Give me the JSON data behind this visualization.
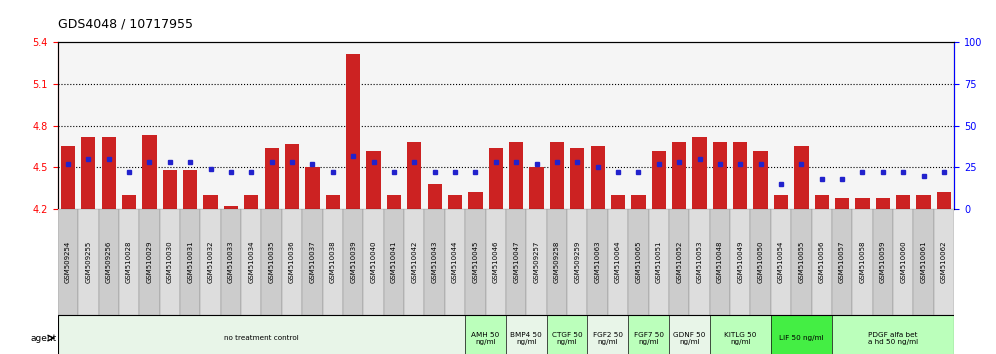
{
  "title": "GDS4048 / 10717955",
  "samples": [
    "GSM509254",
    "GSM509255",
    "GSM509256",
    "GSM510028",
    "GSM510029",
    "GSM510030",
    "GSM510031",
    "GSM510032",
    "GSM510033",
    "GSM510034",
    "GSM510035",
    "GSM510036",
    "GSM510037",
    "GSM510038",
    "GSM510039",
    "GSM510040",
    "GSM510041",
    "GSM510042",
    "GSM510043",
    "GSM510044",
    "GSM510045",
    "GSM510046",
    "GSM510047",
    "GSM509257",
    "GSM509258",
    "GSM509259",
    "GSM510063",
    "GSM510064",
    "GSM510065",
    "GSM510051",
    "GSM510052",
    "GSM510053",
    "GSM510048",
    "GSM510049",
    "GSM510050",
    "GSM510054",
    "GSM510055",
    "GSM510056",
    "GSM510057",
    "GSM510058",
    "GSM510059",
    "GSM510060",
    "GSM510061",
    "GSM510062"
  ],
  "bar_values": [
    4.65,
    4.72,
    4.72,
    4.3,
    4.73,
    4.48,
    4.48,
    4.3,
    4.22,
    4.3,
    4.64,
    4.67,
    4.5,
    4.3,
    5.32,
    4.62,
    4.3,
    4.68,
    4.38,
    4.3,
    4.32,
    4.64,
    4.68,
    4.5,
    4.68,
    4.64,
    4.65,
    4.3,
    4.3,
    4.62,
    4.68,
    4.72,
    4.68,
    4.68,
    4.62,
    4.3,
    4.65,
    4.3,
    4.28,
    4.28,
    4.28,
    4.3,
    4.3,
    4.32
  ],
  "percentile_values": [
    27,
    30,
    30,
    22,
    28,
    28,
    28,
    24,
    22,
    22,
    28,
    28,
    27,
    22,
    32,
    28,
    22,
    28,
    22,
    22,
    22,
    28,
    28,
    27,
    28,
    28,
    25,
    22,
    22,
    27,
    28,
    30,
    27,
    27,
    27,
    15,
    27,
    18,
    18,
    22,
    22,
    22,
    20,
    22
  ],
  "agent_groups": [
    {
      "label": "no treatment control",
      "start": 0,
      "end": 20,
      "color": "#e8f5e8",
      "bright": false
    },
    {
      "label": "AMH 50\nng/ml",
      "start": 20,
      "end": 22,
      "color": "#bbffbb",
      "bright": true
    },
    {
      "label": "BMP4 50\nng/ml",
      "start": 22,
      "end": 24,
      "color": "#e8f5e8",
      "bright": false
    },
    {
      "label": "CTGF 50\nng/ml",
      "start": 24,
      "end": 26,
      "color": "#bbffbb",
      "bright": true
    },
    {
      "label": "FGF2 50\nng/ml",
      "start": 26,
      "end": 28,
      "color": "#e8f5e8",
      "bright": false
    },
    {
      "label": "FGF7 50\nng/ml",
      "start": 28,
      "end": 30,
      "color": "#bbffbb",
      "bright": true
    },
    {
      "label": "GDNF 50\nng/ml",
      "start": 30,
      "end": 32,
      "color": "#e8f5e8",
      "bright": false
    },
    {
      "label": "KITLG 50\nng/ml",
      "start": 32,
      "end": 35,
      "color": "#bbffbb",
      "bright": true
    },
    {
      "label": "LIF 50 ng/ml",
      "start": 35,
      "end": 38,
      "color": "#44ee44",
      "bright": true
    },
    {
      "label": "PDGF alfa bet\na hd 50 ng/ml",
      "start": 38,
      "end": 44,
      "color": "#bbffbb",
      "bright": true
    }
  ],
  "ylim_left": [
    4.2,
    5.4
  ],
  "ylim_right": [
    0,
    100
  ],
  "yticks_left": [
    4.2,
    4.5,
    4.8,
    5.1,
    5.4
  ],
  "yticks_right": [
    0,
    25,
    50,
    75,
    100
  ],
  "hgrid_lines": [
    4.5,
    4.8,
    5.1
  ],
  "bar_color": "#cc2222",
  "dot_color": "#2222cc",
  "bar_bottom": 4.2
}
